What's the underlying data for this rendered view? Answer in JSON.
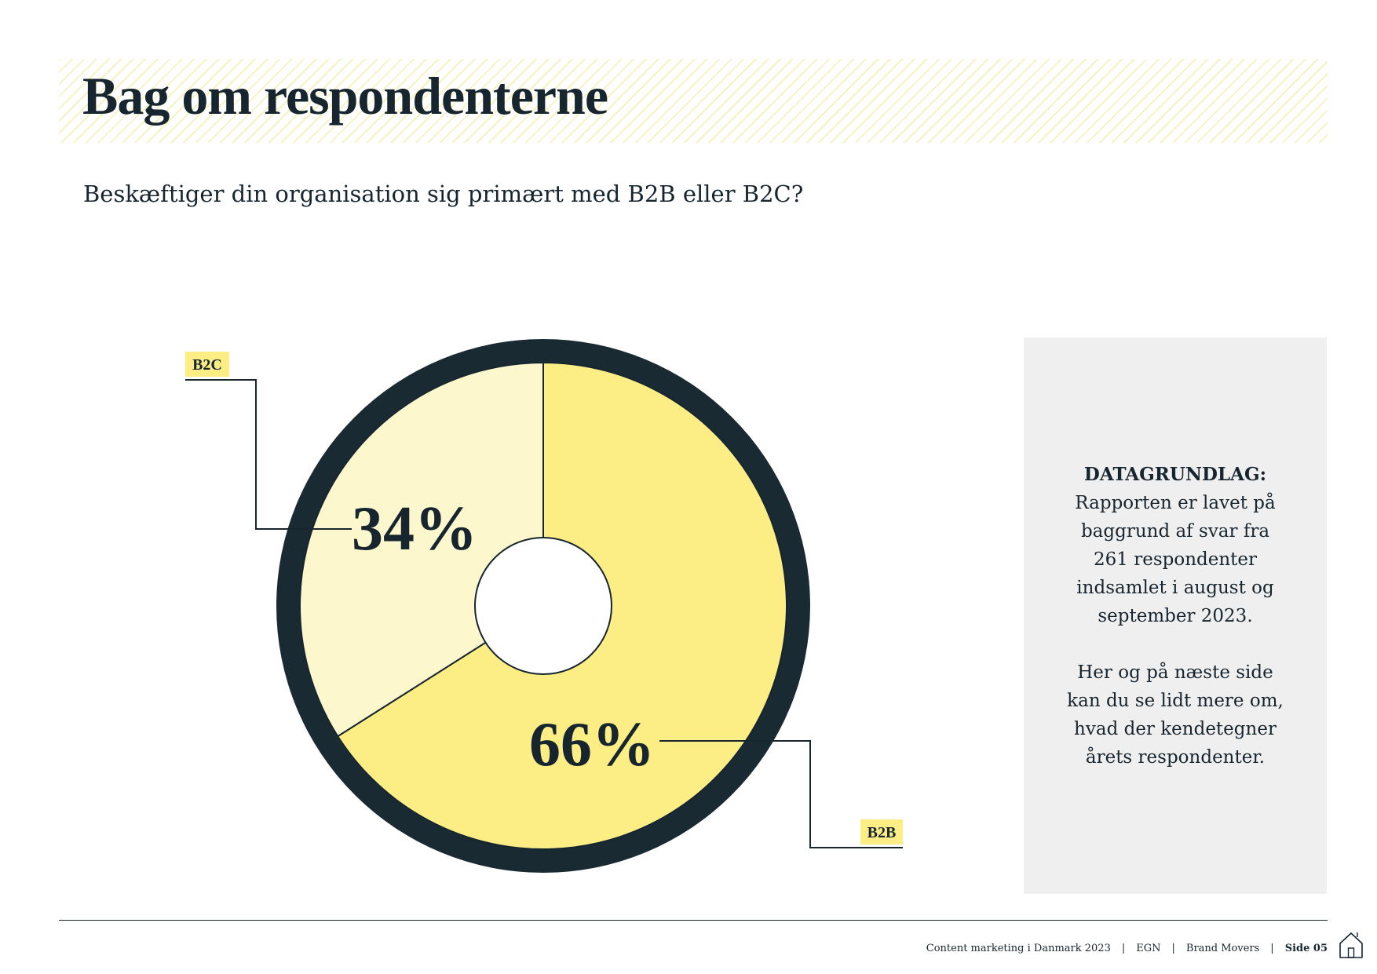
{
  "page": {
    "title": "Bag om respondenterne",
    "question": "Beskæftiger din organisation sig primært med B2B eller B2C?"
  },
  "chart_data": {
    "type": "pie",
    "categories": [
      "B2B",
      "B2C"
    ],
    "values": [
      66,
      34
    ],
    "value_labels": [
      "66%",
      "34%"
    ],
    "colors": [
      "#fcee85",
      "#fcf7cd"
    ],
    "ring_color": "#1a2a33",
    "title": "",
    "legend": "callouts"
  },
  "info_box": {
    "title": "DATAGRUNDLAG:",
    "lines_1": [
      "Rapporten er lavet på",
      "baggrund af svar fra",
      "261 respondenter",
      "indsamlet i august og",
      "september 2023."
    ],
    "lines_2": [
      "Her og på næste side",
      "kan du se lidt mere om,",
      "hvad der kendetegner",
      "årets respondenter."
    ]
  },
  "footer": {
    "publication": "Content marketing i Danmark 2023",
    "partner_1": "EGN",
    "partner_2": "Brand Movers",
    "separator": "|",
    "page": "Side 05",
    "home_icon": "home-icon"
  }
}
